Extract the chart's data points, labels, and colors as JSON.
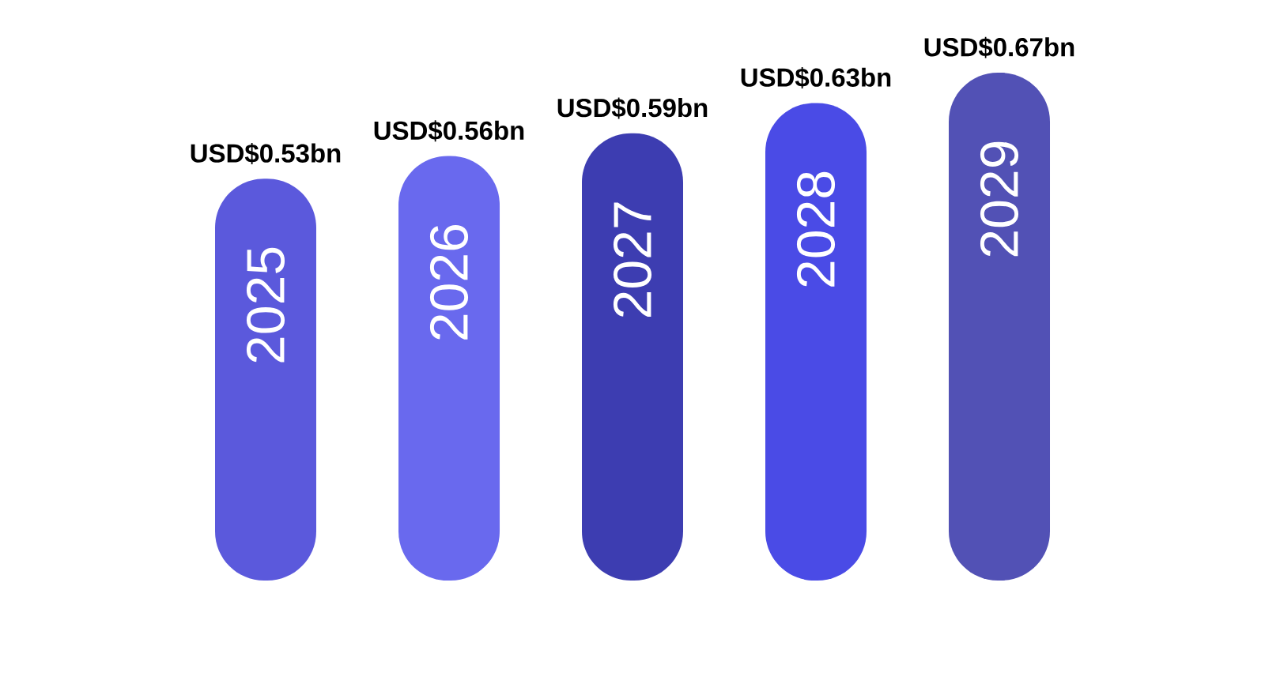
{
  "chart_data": {
    "type": "bar",
    "categories": [
      "2025",
      "2026",
      "2027",
      "2028",
      "2029"
    ],
    "values": [
      530000000,
      560000000,
      590000000,
      630000000,
      670000000
    ],
    "colors": [
      "#5b59dc",
      "#6969ee",
      "#3d3db1",
      "#4a4be6",
      "#5251b5"
    ],
    "value_labels": [
      "USD$0.53bn",
      "USD$0.56bn",
      "USD$0.59bn",
      "USD$0.63bn",
      "USD$0.67bn"
    ]
  }
}
